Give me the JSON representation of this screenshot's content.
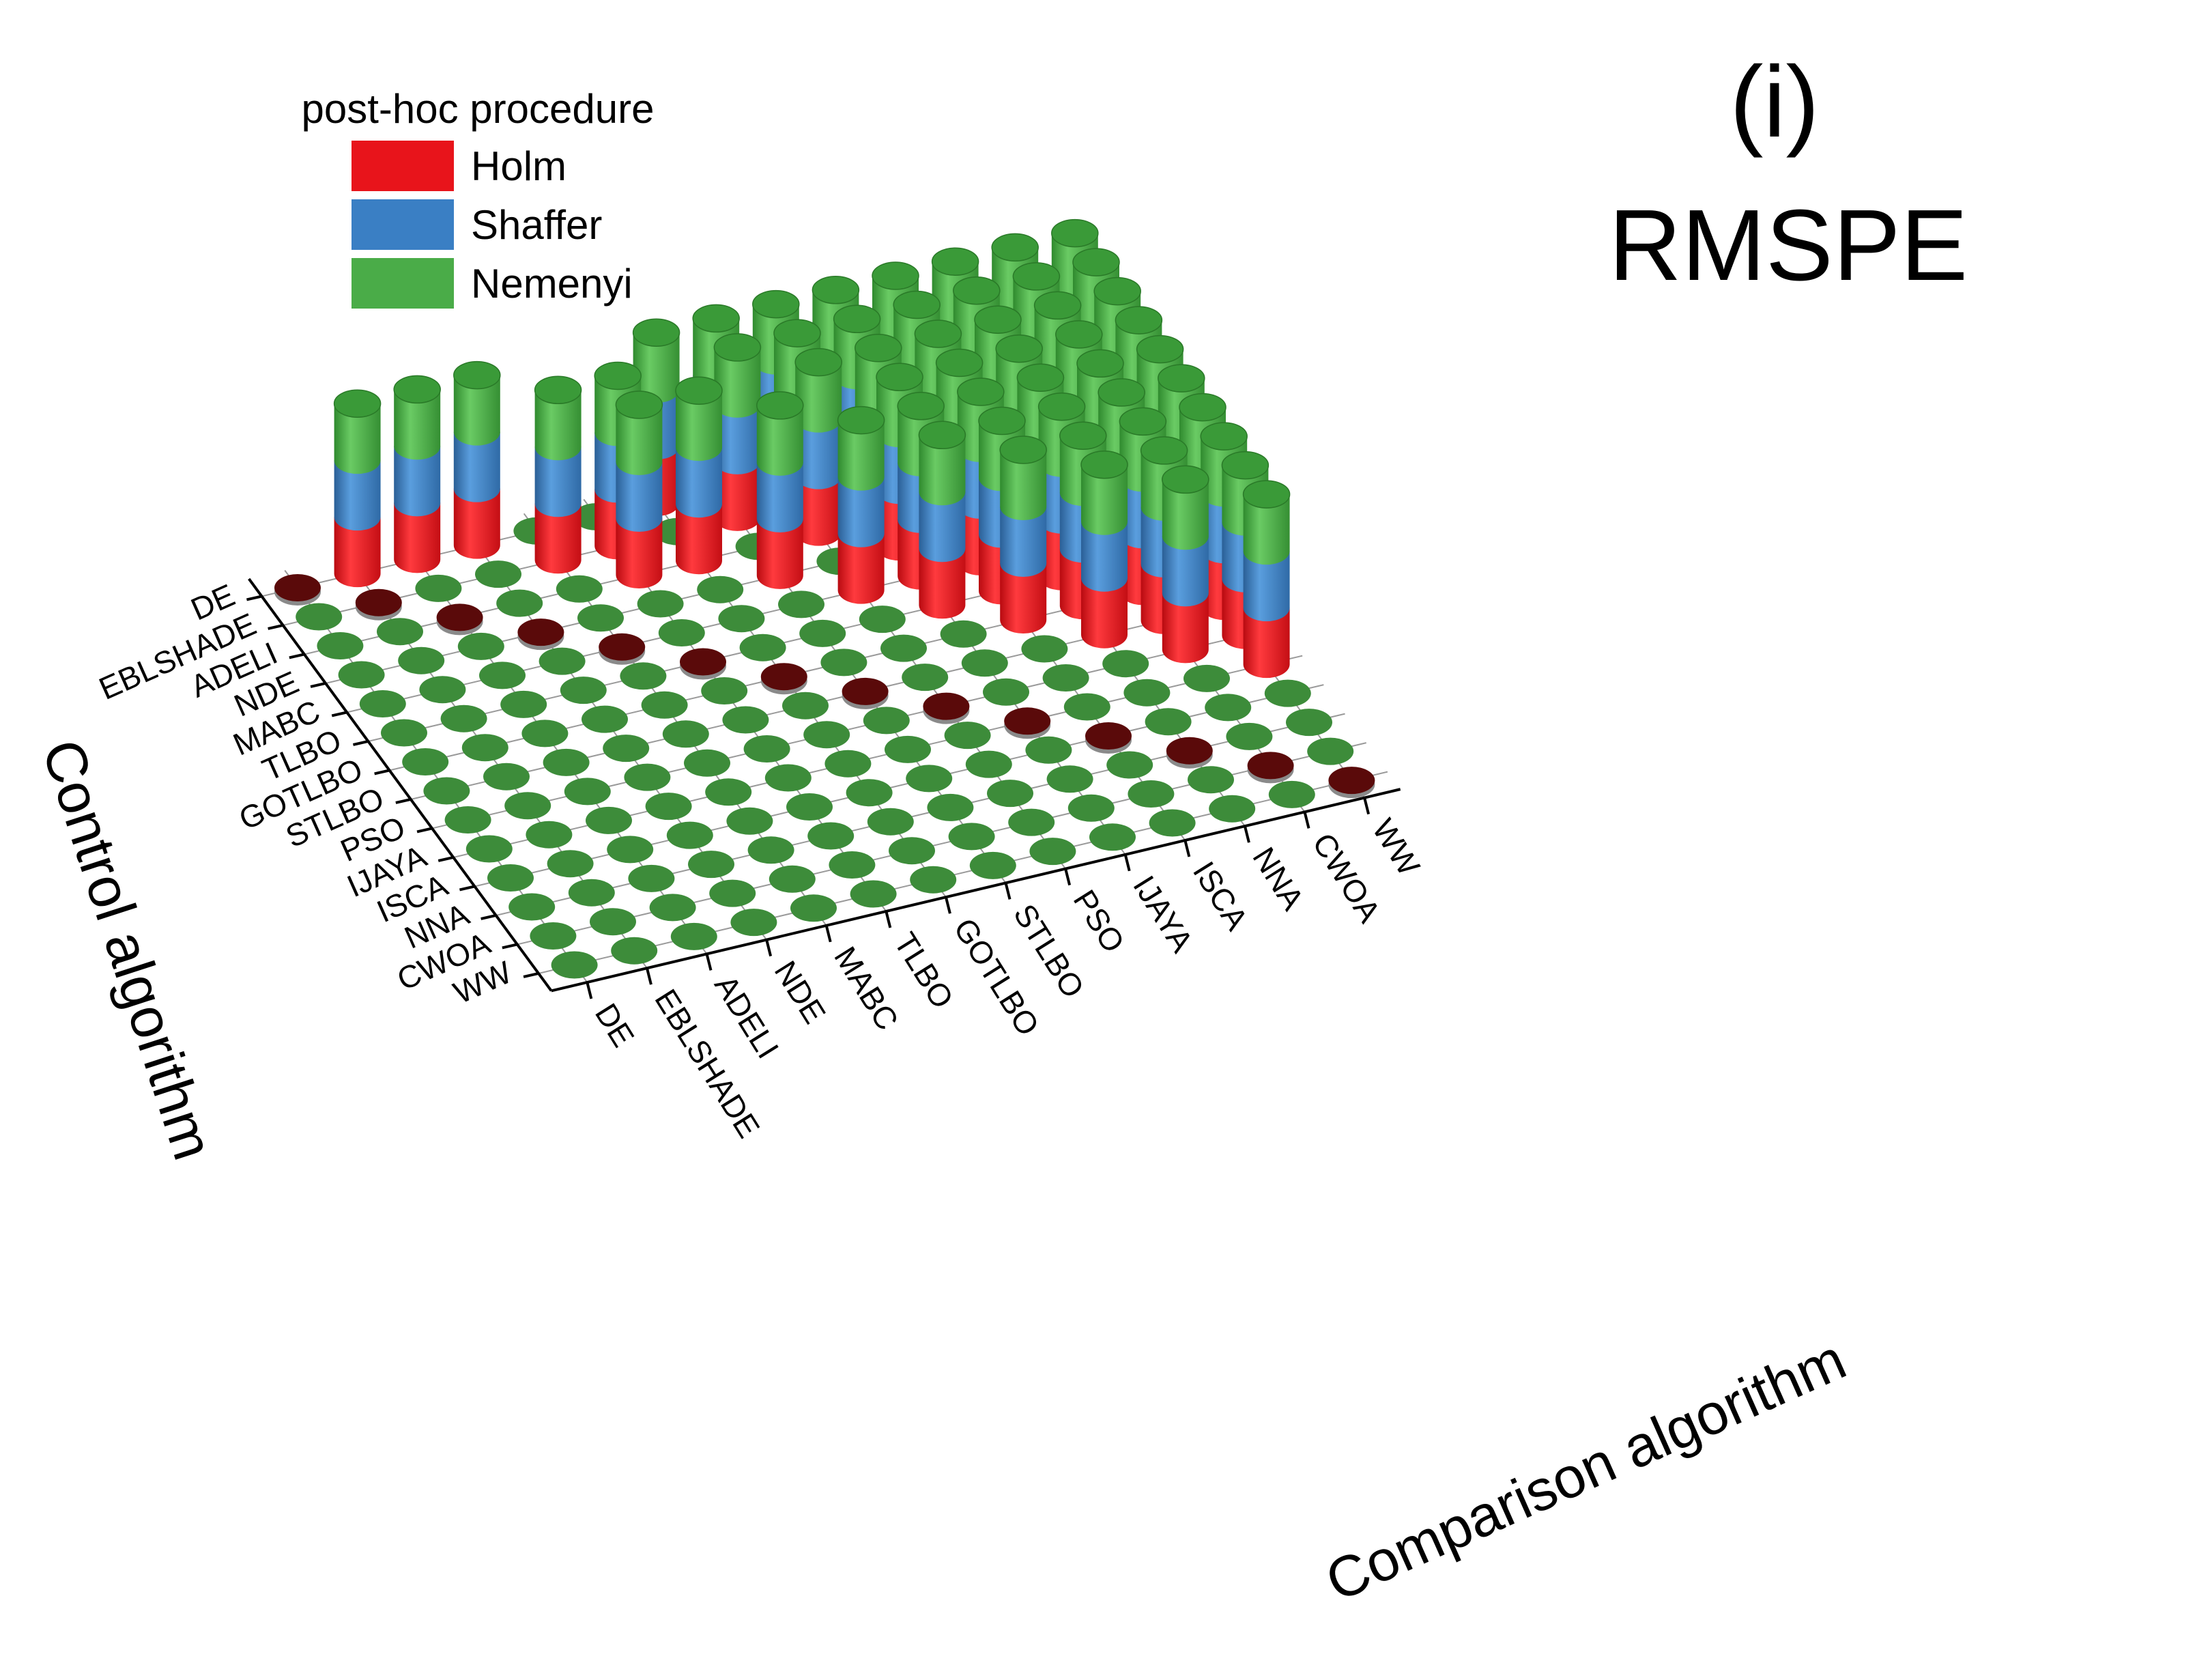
{
  "chart_data": {
    "type": "bar3d",
    "panel_label": "(i)",
    "title": "RMSPE",
    "xlabel": "Comparison algorithm",
    "ylabel": "Control algorithm",
    "legend_title": "post-hoc procedure",
    "legend_position": "top-left",
    "algorithms": [
      "DE",
      "EBLSHADE",
      "ADELI",
      "NDE",
      "MABC",
      "TLBO",
      "GOTLBO",
      "STLBO",
      "PSO",
      "IJAYA",
      "ISCA",
      "NNA",
      "CWOA",
      "WW"
    ],
    "series": [
      {
        "name": "Holm",
        "color": "#e8141b"
      },
      {
        "name": "Shaffer",
        "color": "#3a7fc4"
      },
      {
        "name": "Nemenyi",
        "color": "#4aac48"
      }
    ],
    "colors": {
      "zero_marker": "#3d8c3a",
      "diagonal_marker": "#5a0a0a",
      "grid": "#9a9a9a",
      "axis": "#000000"
    },
    "significant_pairs": [
      [
        "DE",
        "EBLSHADE"
      ],
      [
        "DE",
        "ADELI"
      ],
      [
        "DE",
        "NDE"
      ],
      [
        "EBLSHADE",
        "MABC"
      ],
      [
        "EBLSHADE",
        "TLBO"
      ],
      [
        "ADELI",
        "TLBO"
      ],
      [
        "ADELI",
        "GOTLBO"
      ],
      [
        "NDE",
        "STLBO"
      ],
      [
        "MABC",
        "PSO"
      ],
      [
        "MABC",
        "IJAYA"
      ],
      [
        "TLBO",
        "IJAYA"
      ],
      [
        "TLBO",
        "ISCA"
      ],
      [
        "GOTLBO",
        "ISCA"
      ],
      [
        "GOTLBO",
        "NNA"
      ],
      [
        "STLBO",
        "NNA"
      ],
      [
        "STLBO",
        "CWOA"
      ],
      [
        "STLBO",
        "WW"
      ],
      [
        "PSO",
        "CWOA"
      ],
      [
        "PSO",
        "WW"
      ],
      [
        "IJAYA",
        "WW"
      ],
      [
        "DE",
        "GOTLBO"
      ],
      [
        "DE",
        "STLBO"
      ],
      [
        "DE",
        "PSO"
      ],
      [
        "EBLSHADE",
        "STLBO"
      ],
      [
        "EBLSHADE",
        "PSO"
      ],
      [
        "EBLSHADE",
        "IJAYA"
      ],
      [
        "ADELI",
        "PSO"
      ],
      [
        "ADELI",
        "IJAYA"
      ],
      [
        "ADELI",
        "ISCA"
      ],
      [
        "NDE",
        "IJAYA"
      ],
      [
        "NDE",
        "ISCA"
      ],
      [
        "NDE",
        "NNA"
      ],
      [
        "MABC",
        "ISCA"
      ],
      [
        "MABC",
        "NNA"
      ],
      [
        "MABC",
        "CWOA"
      ],
      [
        "TLBO",
        "NNA"
      ],
      [
        "TLBO",
        "CWOA"
      ],
      [
        "TLBO",
        "WW"
      ],
      [
        "GOTLBO",
        "CWOA"
      ],
      [
        "GOTLBO",
        "WW"
      ],
      [
        "DE",
        "IJAYA"
      ],
      [
        "DE",
        "ISCA"
      ],
      [
        "DE",
        "NNA"
      ],
      [
        "DE",
        "CWOA"
      ],
      [
        "DE",
        "WW"
      ],
      [
        "EBLSHADE",
        "ISCA"
      ],
      [
        "EBLSHADE",
        "NNA"
      ],
      [
        "EBLSHADE",
        "CWOA"
      ],
      [
        "EBLSHADE",
        "WW"
      ],
      [
        "ADELI",
        "NNA"
      ],
      [
        "ADELI",
        "CWOA"
      ],
      [
        "ADELI",
        "WW"
      ],
      [
        "NDE",
        "CWOA"
      ],
      [
        "NDE",
        "WW"
      ],
      [
        "MABC",
        "WW"
      ]
    ]
  }
}
